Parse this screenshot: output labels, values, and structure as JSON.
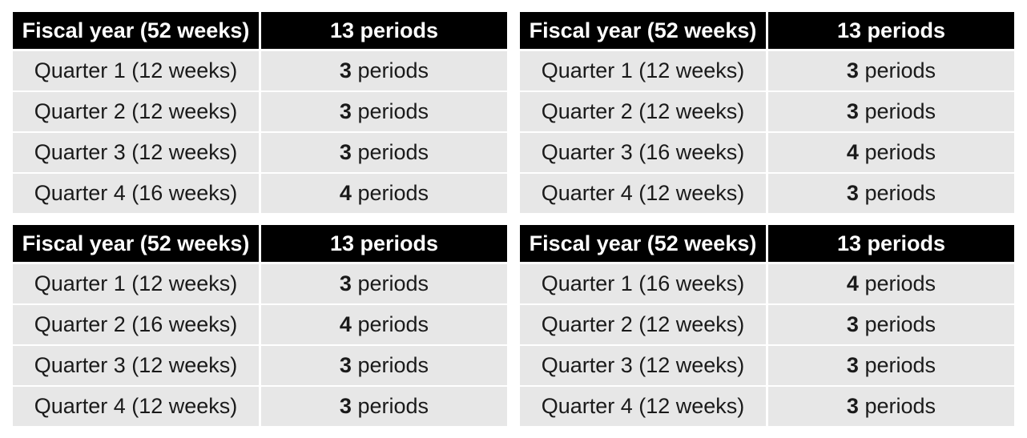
{
  "colors": {
    "page_background": "#ffffff",
    "header_background": "#000000",
    "header_text": "#ffffff",
    "row_background": "#e7e7e7",
    "row_text": "#1a1a1a"
  },
  "tables": [
    {
      "position": "top-left",
      "header": {
        "fiscal_year": "Fiscal year (52 weeks)",
        "periods": "13 periods"
      },
      "rows": [
        {
          "label": "Quarter 1 (12 weeks)",
          "count": "3",
          "unit": "periods"
        },
        {
          "label": "Quarter 2 (12 weeks)",
          "count": "3",
          "unit": "periods"
        },
        {
          "label": "Quarter 3 (12 weeks)",
          "count": "3",
          "unit": "periods"
        },
        {
          "label": "Quarter 4 (16 weeks)",
          "count": "4",
          "unit": "periods"
        }
      ]
    },
    {
      "position": "top-right",
      "header": {
        "fiscal_year": "Fiscal year (52 weeks)",
        "periods": "13 periods"
      },
      "rows": [
        {
          "label": "Quarter 1 (12 weeks)",
          "count": "3",
          "unit": "periods"
        },
        {
          "label": "Quarter 2 (12 weeks)",
          "count": "3",
          "unit": "periods"
        },
        {
          "label": "Quarter 3 (16 weeks)",
          "count": "4",
          "unit": "periods"
        },
        {
          "label": "Quarter 4 (12 weeks)",
          "count": "3",
          "unit": "periods"
        }
      ]
    },
    {
      "position": "bottom-left",
      "header": {
        "fiscal_year": "Fiscal year (52 weeks)",
        "periods": "13 periods"
      },
      "rows": [
        {
          "label": "Quarter 1 (12 weeks)",
          "count": "3",
          "unit": "periods"
        },
        {
          "label": "Quarter 2 (16 weeks)",
          "count": "4",
          "unit": "periods"
        },
        {
          "label": "Quarter 3 (12 weeks)",
          "count": "3",
          "unit": "periods"
        },
        {
          "label": "Quarter 4 (12 weeks)",
          "count": "3",
          "unit": "periods"
        }
      ]
    },
    {
      "position": "bottom-right",
      "header": {
        "fiscal_year": "Fiscal year (52 weeks)",
        "periods": "13 periods"
      },
      "rows": [
        {
          "label": "Quarter 1 (16 weeks)",
          "count": "4",
          "unit": "periods"
        },
        {
          "label": "Quarter 2 (12 weeks)",
          "count": "3",
          "unit": "periods"
        },
        {
          "label": "Quarter 3 (12 weeks)",
          "count": "3",
          "unit": "periods"
        },
        {
          "label": "Quarter 4 (12 weeks)",
          "count": "3",
          "unit": "periods"
        }
      ]
    }
  ]
}
